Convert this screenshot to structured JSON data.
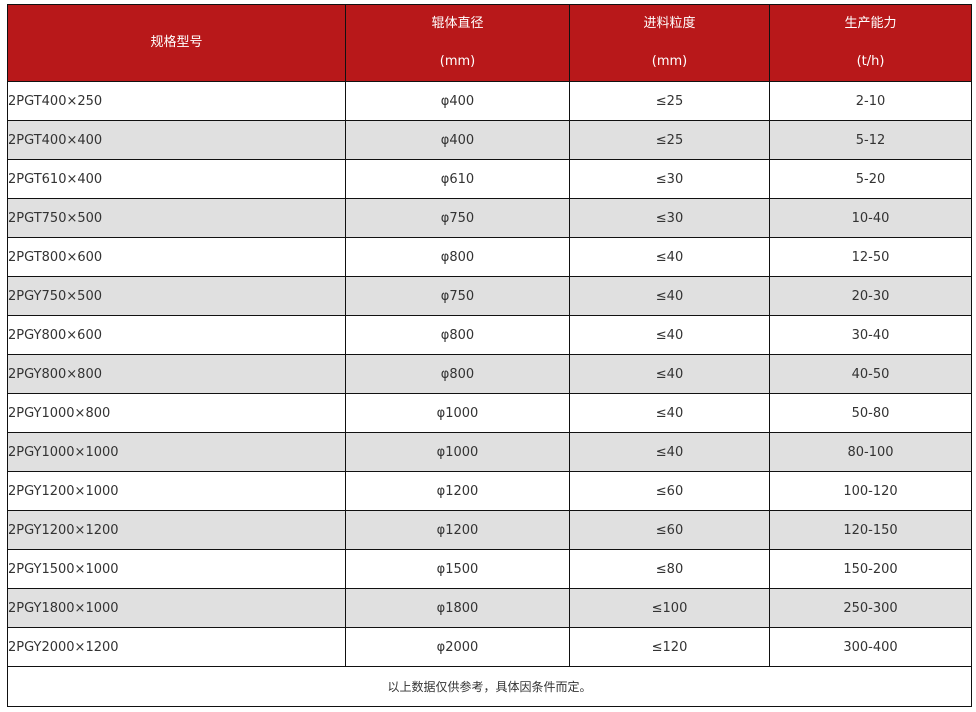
{
  "header": {
    "col1": "规格型号",
    "col2": "辊体直径",
    "col2_unit": "(mm)",
    "col3": "进料粒度",
    "col3_unit": "(mm)",
    "col4": "生产能力",
    "col4_unit": "(t/h)"
  },
  "colors": {
    "header_bg": "#b8181a",
    "alt_row": "#e0e0e0"
  },
  "rows": [
    [
      "2PGT400×250",
      "φ400",
      "≤25",
      "2-10"
    ],
    [
      "2PGT400×400",
      "φ400",
      "≤25",
      "5-12"
    ],
    [
      "2PGT610×400",
      "φ610",
      "≤30",
      "5-20"
    ],
    [
      "2PGT750×500",
      "φ750",
      "≤30",
      "10-40"
    ],
    [
      "2PGT800×600",
      "φ800",
      "≤40",
      "12-50"
    ],
    [
      "2PGY750×500",
      "φ750",
      "≤40",
      "20-30"
    ],
    [
      "2PGY800×600",
      "φ800",
      "≤40",
      "30-40"
    ],
    [
      "2PGY800×800",
      "φ800",
      "≤40",
      "40-50"
    ],
    [
      "2PGY1000×800",
      "φ1000",
      "≤40",
      "50-80"
    ],
    [
      "2PGY1000×1000",
      "φ1000",
      "≤40",
      "80-100"
    ],
    [
      "2PGY1200×1000",
      "φ1200",
      "≤60",
      "100-120"
    ],
    [
      "2PGY1200×1200",
      "φ1200",
      "≤60",
      "120-150"
    ],
    [
      "2PGY1500×1000",
      "φ1500",
      "≤80",
      "150-200"
    ],
    [
      "2PGY1800×1000",
      "φ1800",
      "≤100",
      "250-300"
    ],
    [
      "2PGY2000×1200",
      "φ2000",
      "≤120",
      "300-400"
    ]
  ],
  "footer": "以上数据仅供参考，具体因条件而定。"
}
